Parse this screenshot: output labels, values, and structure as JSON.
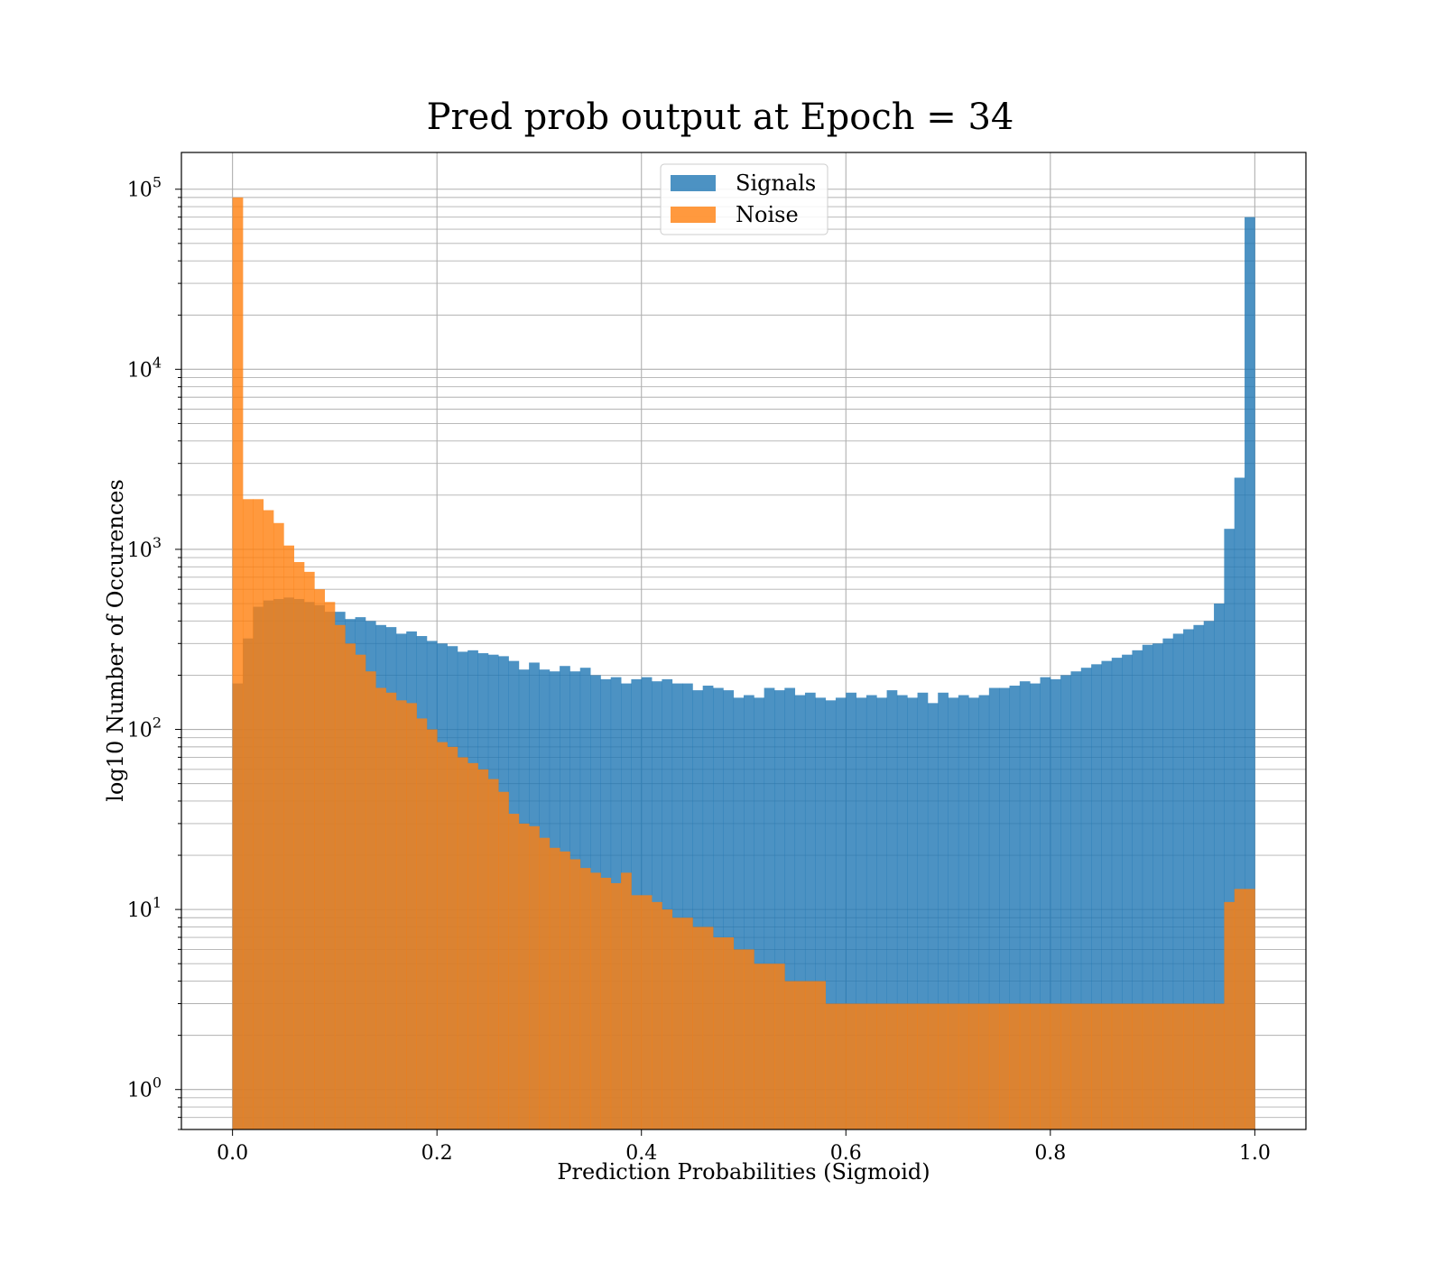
{
  "chart_data": {
    "type": "bar",
    "title": "Pred prob output at Epoch = 34",
    "xlabel": "Prediction Probabilities (Sigmoid)",
    "ylabel": "log10 Number of Occurences",
    "yscale": "log",
    "xlim": [
      -0.05,
      1.05
    ],
    "ylim": [
      0.6,
      160000
    ],
    "x_ticks": [
      "0.0",
      "0.2",
      "0.4",
      "0.6",
      "0.8",
      "1.0"
    ],
    "x_tick_values": [
      0,
      0.2,
      0.4,
      0.6,
      0.8,
      1.0
    ],
    "y_ticks": [
      {
        "base": "10",
        "exp": "0",
        "value": 1
      },
      {
        "base": "10",
        "exp": "1",
        "value": 10
      },
      {
        "base": "10",
        "exp": "2",
        "value": 100
      },
      {
        "base": "10",
        "exp": "3",
        "value": 1000
      },
      {
        "base": "10",
        "exp": "4",
        "value": 10000
      },
      {
        "base": "10",
        "exp": "5",
        "value": 100000
      }
    ],
    "grid": true,
    "legend": "upper center",
    "bins": 100,
    "bin_range": [
      0,
      1
    ],
    "series": [
      {
        "name": "Signals",
        "color": "#1f77b4",
        "values": [
          180,
          320,
          480,
          520,
          530,
          540,
          530,
          510,
          490,
          450,
          450,
          410,
          420,
          400,
          380,
          370,
          340,
          350,
          330,
          310,
          300,
          290,
          270,
          275,
          265,
          260,
          255,
          240,
          215,
          235,
          215,
          210,
          225,
          210,
          220,
          200,
          190,
          195,
          180,
          190,
          195,
          185,
          190,
          180,
          180,
          165,
          175,
          170,
          165,
          150,
          155,
          150,
          170,
          165,
          170,
          155,
          160,
          150,
          145,
          150,
          160,
          150,
          155,
          150,
          165,
          155,
          150,
          160,
          140,
          160,
          150,
          155,
          150,
          155,
          170,
          170,
          175,
          185,
          180,
          195,
          190,
          200,
          210,
          220,
          230,
          240,
          250,
          260,
          275,
          295,
          300,
          320,
          340,
          360,
          380,
          400,
          500,
          1300,
          2500,
          70000
        ]
      },
      {
        "name": "Noise",
        "color": "#ff7f0e",
        "values": [
          90000,
          1900,
          1900,
          1650,
          1400,
          1050,
          850,
          750,
          600,
          510,
          380,
          300,
          260,
          210,
          170,
          160,
          145,
          140,
          115,
          100,
          85,
          80,
          70,
          65,
          60,
          53,
          45,
          34,
          30,
          29,
          25,
          22,
          21,
          19,
          17,
          16,
          15,
          14,
          16,
          12,
          12,
          11,
          10,
          9,
          9,
          8,
          8,
          7,
          7,
          6,
          6,
          5,
          5,
          5,
          4,
          4,
          4,
          4,
          3,
          3,
          3,
          3,
          3,
          3,
          3,
          3,
          3,
          3,
          3,
          3,
          3,
          3,
          3,
          3,
          3,
          3,
          3,
          3,
          3,
          3,
          3,
          3,
          3,
          3,
          3,
          3,
          3,
          3,
          3,
          3,
          3,
          3,
          3,
          3,
          3,
          3,
          3,
          11,
          13,
          13
        ]
      }
    ]
  }
}
